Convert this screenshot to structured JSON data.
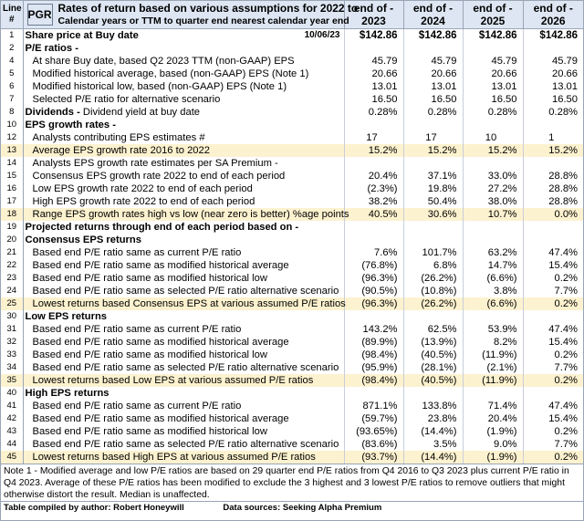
{
  "header": {
    "line_label": "Line #",
    "ticker": "PGR",
    "title": "Rates of return based on various assumptions for 2022 to",
    "subtitle": "Calendar years or TTM to quarter end nearest calendar year end",
    "years": [
      "end of - 2023",
      "end of - 2024",
      "end of - 2025",
      "end of - 2026"
    ]
  },
  "rows": [
    {
      "n": "1",
      "label": "Share price at Buy date",
      "date": "10/06/23",
      "v": [
        "$142.86",
        "$142.86",
        "$142.86",
        "$142.86"
      ],
      "bold": true
    },
    {
      "n": "2",
      "label": "P/E ratios -",
      "v": [
        "",
        "",
        "",
        ""
      ],
      "bold": true
    },
    {
      "n": "4",
      "label": "At share Buy date, based Q2 2023 TTM (non-GAAP) EPS",
      "v": [
        "45.79",
        "45.79",
        "45.79",
        "45.79"
      ],
      "indent": 1
    },
    {
      "n": "5",
      "label": "Modified historical average, based (non-GAAP) EPS  (Note 1)",
      "v": [
        "20.66",
        "20.66",
        "20.66",
        "20.66"
      ],
      "indent": 1
    },
    {
      "n": "6",
      "label": "Modified historical low, based (non-GAAP) EPS  (Note 1)",
      "v": [
        "13.01",
        "13.01",
        "13.01",
        "13.01"
      ],
      "indent": 1
    },
    {
      "n": "7",
      "label": "Selected P/E ratio for alternative scenario",
      "v": [
        "16.50",
        "16.50",
        "16.50",
        "16.50"
      ],
      "indent": 1
    },
    {
      "n": "8",
      "label": "Dividends -  Dividend yield at buy date",
      "v": [
        "0.28%",
        "0.28%",
        "0.28%",
        "0.28%"
      ],
      "bold_prefix": "Dividends -",
      "rest": "  Dividend yield at buy date"
    },
    {
      "n": "10",
      "label": "EPS growth rates -",
      "v": [
        "",
        "",
        "",
        ""
      ],
      "bold": true
    },
    {
      "n": "12",
      "label": "Analysts contributing EPS estimates #",
      "v": [
        "17",
        "17",
        "10",
        "1"
      ],
      "indent": 1,
      "center": true
    },
    {
      "n": "13",
      "label": "Average EPS growth rate 2016 to 2022",
      "v": [
        "15.2%",
        "15.2%",
        "15.2%",
        "15.2%"
      ],
      "indent": 1,
      "hl": true
    },
    {
      "n": "14",
      "label": "Analysts EPS growth rate estimates per SA Premium -",
      "v": [
        "",
        "",
        "",
        ""
      ],
      "indent": 1
    },
    {
      "n": "15",
      "label": "Consensus EPS growth rate 2022 to end of each period",
      "v": [
        "20.4%",
        "37.1%",
        "33.0%",
        "28.8%"
      ],
      "indent": 1
    },
    {
      "n": "16",
      "label": "Low EPS growth rate 2022 to end of each period",
      "v": [
        "(2.3%)",
        "19.8%",
        "27.2%",
        "28.8%"
      ],
      "indent": 1
    },
    {
      "n": "17",
      "label": "High EPS growth rate 2022 to end of each period",
      "v": [
        "38.2%",
        "50.4%",
        "38.0%",
        "28.8%"
      ],
      "indent": 1
    },
    {
      "n": "18",
      "label": "Range EPS growth rates high vs low (near zero is better) %age points",
      "v": [
        "40.5%",
        "30.6%",
        "10.7%",
        "0.0%"
      ],
      "indent": 1,
      "hl": true
    },
    {
      "n": "19",
      "label": "Projected returns through end of each period based on -",
      "v": [
        "",
        "",
        "",
        ""
      ],
      "bold": true
    },
    {
      "n": "20",
      "label": "Consensus EPS returns",
      "v": [
        "",
        "",
        "",
        ""
      ],
      "bold": true
    },
    {
      "n": "21",
      "label": "Based end P/E ratio same as current P/E ratio",
      "v": [
        "7.6%",
        "101.7%",
        "63.2%",
        "47.4%"
      ],
      "indent": 1
    },
    {
      "n": "22",
      "label": "Based end P/E ratio same as modified historical average",
      "v": [
        "(76.8%)",
        "6.8%",
        "14.7%",
        "15.4%"
      ],
      "indent": 1
    },
    {
      "n": "23",
      "label": "Based end P/E ratio same as modified historical low",
      "v": [
        "(96.3%)",
        "(26.2%)",
        "(6.6%)",
        "0.2%"
      ],
      "indent": 1
    },
    {
      "n": "24",
      "label": "Based end P/E ratio same as selected P/E ratio alternative scenario",
      "v": [
        "(90.5%)",
        "(10.8%)",
        "3.8%",
        "7.7%"
      ],
      "indent": 1
    },
    {
      "n": "25",
      "label": "Lowest returns based Consensus EPS at various assumed P/E ratios",
      "v": [
        "(96.3%)",
        "(26.2%)",
        "(6.6%)",
        "0.2%"
      ],
      "indent": 1,
      "hl": true
    },
    {
      "n": "30",
      "label": "Low EPS returns",
      "v": [
        "",
        "",
        "",
        ""
      ],
      "bold": true
    },
    {
      "n": "31",
      "label": "Based end P/E ratio same as current P/E ratio",
      "v": [
        "143.2%",
        "62.5%",
        "53.9%",
        "47.4%"
      ],
      "indent": 1
    },
    {
      "n": "32",
      "label": "Based end P/E ratio same as modified historical average",
      "v": [
        "(89.9%)",
        "(13.9%)",
        "8.2%",
        "15.4%"
      ],
      "indent": 1
    },
    {
      "n": "33",
      "label": "Based end P/E ratio same as modified historical low",
      "v": [
        "(98.4%)",
        "(40.5%)",
        "(11.9%)",
        "0.2%"
      ],
      "indent": 1
    },
    {
      "n": "34",
      "label": "Based end P/E ratio same as selected P/E ratio alternative scenario",
      "v": [
        "(95.9%)",
        "(28.1%)",
        "(2.1%)",
        "7.7%"
      ],
      "indent": 1
    },
    {
      "n": "35",
      "label": "Lowest returns based Low EPS at various assumed P/E ratios",
      "v": [
        "(98.4%)",
        "(40.5%)",
        "(11.9%)",
        "0.2%"
      ],
      "indent": 1,
      "hl": true
    },
    {
      "n": "40",
      "label": "High  EPS returns",
      "v": [
        "",
        "",
        "",
        ""
      ],
      "bold": true
    },
    {
      "n": "41",
      "label": "Based end P/E ratio same as current P/E ratio",
      "v": [
        "871.1%",
        "133.8%",
        "71.4%",
        "47.4%"
      ],
      "indent": 1
    },
    {
      "n": "42",
      "label": "Based end P/E ratio same as modified historical average",
      "v": [
        "(59.7%)",
        "23.8%",
        "20.4%",
        "15.4%"
      ],
      "indent": 1
    },
    {
      "n": "43",
      "label": "Based end P/E ratio same as modified historical low",
      "v": [
        "(93.65%)",
        "(14.4%)",
        "(1.9%)",
        "0.2%"
      ],
      "indent": 1
    },
    {
      "n": "44",
      "label": "Based end P/E ratio same as selected P/E ratio alternative scenario",
      "v": [
        "(83.6%)",
        "3.5%",
        "9.0%",
        "7.7%"
      ],
      "indent": 1
    },
    {
      "n": "45",
      "label": "Lowest returns based High EPS at various assumed P/E ratios",
      "v": [
        "(93.7%)",
        "(14.4%)",
        "(1.9%)",
        "0.2%"
      ],
      "indent": 1,
      "hl": true
    }
  ],
  "note": "Note 1 - Modified average and low P/E ratios are based on 29 quarter end  P/E ratios from Q4 2016 to Q3 2023 plus current P/E ratio in Q4 2023. Average of these P/E ratios has been modified to exclude the 3 highest and 3 lowest P/E ratios to remove outliers that might otherwise distort the result. Median is unaffected.",
  "footer": {
    "compiled": "Table compiled by author: Robert Honeywill",
    "sources": "Data sources: Seeking Alpha Premium"
  }
}
